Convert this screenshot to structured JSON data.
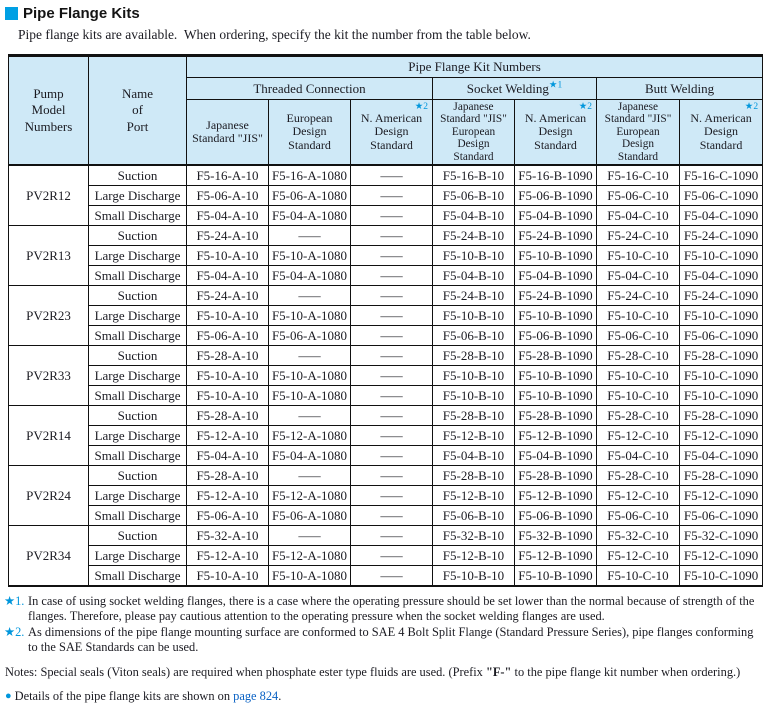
{
  "title": "Pipe Flange Kits",
  "subtitle": "Pipe flange kits are available.  When ordering, specify the kit the number from the table below.",
  "colors": {
    "accent_square": "#00a0e4",
    "header_bg": "#cfe9f7",
    "star_marker": "#0096dc",
    "link": "#0a62c4"
  },
  "table": {
    "pump_header": "Pump\nModel\nNumbers",
    "port_header": "Name\nof\nPort",
    "kit_numbers_header": "Pipe Flange Kit Numbers",
    "groups_header": [
      {
        "label": "Threaded Connection",
        "marker": ""
      },
      {
        "label": "Socket Welding",
        "marker": "★1"
      },
      {
        "label": "Butt Welding",
        "marker": ""
      }
    ],
    "subheaders": [
      {
        "text": "Japanese\nStandard \"JIS\"",
        "marker": ""
      },
      {
        "text": "European\nDesign\nStandard",
        "marker": ""
      },
      {
        "text": "N. American\nDesign\nStandard",
        "marker": "★2"
      },
      {
        "text": "Japanese\nStandard \"JIS\"\nEuropean\nDesign\nStandard",
        "marker": ""
      },
      {
        "text": "N. American\nDesign\nStandard",
        "marker": "★2"
      },
      {
        "text": "Japanese\nStandard \"JIS\"\nEuropean\nDesign\nStandard",
        "marker": ""
      },
      {
        "text": "N. American\nDesign\nStandard",
        "marker": "★2"
      }
    ],
    "groups": [
      {
        "model": "PV2R12",
        "rows": [
          {
            "port": "Suction",
            "cells": [
              "F5-16-A-10",
              "F5-16-A-1080",
              "—",
              "F5-16-B-10",
              "F5-16-B-1090",
              "F5-16-C-10",
              "F5-16-C-1090"
            ]
          },
          {
            "port": "Large Discharge",
            "cells": [
              "F5-06-A-10",
              "F5-06-A-1080",
              "—",
              "F5-06-B-10",
              "F5-06-B-1090",
              "F5-06-C-10",
              "F5-06-C-1090"
            ]
          },
          {
            "port": "Small Discharge",
            "cells": [
              "F5-04-A-10",
              "F5-04-A-1080",
              "—",
              "F5-04-B-10",
              "F5-04-B-1090",
              "F5-04-C-10",
              "F5-04-C-1090"
            ]
          }
        ]
      },
      {
        "model": "PV2R13",
        "rows": [
          {
            "port": "Suction",
            "cells": [
              "F5-24-A-10",
              "—",
              "—",
              "F5-24-B-10",
              "F5-24-B-1090",
              "F5-24-C-10",
              "F5-24-C-1090"
            ]
          },
          {
            "port": "Large Discharge",
            "cells": [
              "F5-10-A-10",
              "F5-10-A-1080",
              "—",
              "F5-10-B-10",
              "F5-10-B-1090",
              "F5-10-C-10",
              "F5-10-C-1090"
            ]
          },
          {
            "port": "Small Discharge",
            "cells": [
              "F5-04-A-10",
              "F5-04-A-1080",
              "—",
              "F5-04-B-10",
              "F5-04-B-1090",
              "F5-04-C-10",
              "F5-04-C-1090"
            ]
          }
        ]
      },
      {
        "model": "PV2R23",
        "rows": [
          {
            "port": "Suction",
            "cells": [
              "F5-24-A-10",
              "—",
              "—",
              "F5-24-B-10",
              "F5-24-B-1090",
              "F5-24-C-10",
              "F5-24-C-1090"
            ]
          },
          {
            "port": "Large Discharge",
            "cells": [
              "F5-10-A-10",
              "F5-10-A-1080",
              "—",
              "F5-10-B-10",
              "F5-10-B-1090",
              "F5-10-C-10",
              "F5-10-C-1090"
            ]
          },
          {
            "port": "Small Discharge",
            "cells": [
              "F5-06-A-10",
              "F5-06-A-1080",
              "—",
              "F5-06-B-10",
              "F5-06-B-1090",
              "F5-06-C-10",
              "F5-06-C-1090"
            ]
          }
        ]
      },
      {
        "model": "PV2R33",
        "rows": [
          {
            "port": "Suction",
            "cells": [
              "F5-28-A-10",
              "—",
              "—",
              "F5-28-B-10",
              "F5-28-B-1090",
              "F5-28-C-10",
              "F5-28-C-1090"
            ]
          },
          {
            "port": "Large Discharge",
            "cells": [
              "F5-10-A-10",
              "F5-10-A-1080",
              "—",
              "F5-10-B-10",
              "F5-10-B-1090",
              "F5-10-C-10",
              "F5-10-C-1090"
            ]
          },
          {
            "port": "Small Discharge",
            "cells": [
              "F5-10-A-10",
              "F5-10-A-1080",
              "—",
              "F5-10-B-10",
              "F5-10-B-1090",
              "F5-10-C-10",
              "F5-10-C-1090"
            ]
          }
        ]
      },
      {
        "model": "PV2R14",
        "rows": [
          {
            "port": "Suction",
            "cells": [
              "F5-28-A-10",
              "—",
              "—",
              "F5-28-B-10",
              "F5-28-B-1090",
              "F5-28-C-10",
              "F5-28-C-1090"
            ]
          },
          {
            "port": "Large Discharge",
            "cells": [
              "F5-12-A-10",
              "F5-12-A-1080",
              "—",
              "F5-12-B-10",
              "F5-12-B-1090",
              "F5-12-C-10",
              "F5-12-C-1090"
            ]
          },
          {
            "port": "Small Discharge",
            "cells": [
              "F5-04-A-10",
              "F5-04-A-1080",
              "—",
              "F5-04-B-10",
              "F5-04-B-1090",
              "F5-04-C-10",
              "F5-04-C-1090"
            ]
          }
        ]
      },
      {
        "model": "PV2R24",
        "rows": [
          {
            "port": "Suction",
            "cells": [
              "F5-28-A-10",
              "—",
              "—",
              "F5-28-B-10",
              "F5-28-B-1090",
              "F5-28-C-10",
              "F5-28-C-1090"
            ]
          },
          {
            "port": "Large Discharge",
            "cells": [
              "F5-12-A-10",
              "F5-12-A-1080",
              "—",
              "F5-12-B-10",
              "F5-12-B-1090",
              "F5-12-C-10",
              "F5-12-C-1090"
            ]
          },
          {
            "port": "Small Discharge",
            "cells": [
              "F5-06-A-10",
              "F5-06-A-1080",
              "—",
              "F5-06-B-10",
              "F5-06-B-1090",
              "F5-06-C-10",
              "F5-06-C-1090"
            ]
          }
        ]
      },
      {
        "model": "PV2R34",
        "rows": [
          {
            "port": "Suction",
            "cells": [
              "F5-32-A-10",
              "—",
              "—",
              "F5-32-B-10",
              "F5-32-B-1090",
              "F5-32-C-10",
              "F5-32-C-1090"
            ]
          },
          {
            "port": "Large Discharge",
            "cells": [
              "F5-12-A-10",
              "F5-12-A-1080",
              "—",
              "F5-12-B-10",
              "F5-12-B-1090",
              "F5-12-C-10",
              "F5-12-C-1090"
            ]
          },
          {
            "port": "Small Discharge",
            "cells": [
              "F5-10-A-10",
              "F5-10-A-1080",
              "—",
              "F5-10-B-10",
              "F5-10-B-1090",
              "F5-10-C-10",
              "F5-10-C-1090"
            ]
          }
        ]
      }
    ]
  },
  "footnotes": [
    {
      "marker": "★1.",
      "text": "In case of using socket welding flanges, there is a case where the operating pressure should be set lower than the normal because of strength of the flanges. Therefore, please pay cautious attention to the operating pressure when the socket welding flanges are used."
    },
    {
      "marker": "★2.",
      "text": "As dimensions of the pipe flange mounting surface are conformed to SAE 4 Bolt Split Flange (Standard Pressure Series), pipe flanges conforming to the SAE Standards can be used."
    }
  ],
  "notes": {
    "pre": "Notes: Special seals (Viton seals) are required when phosphate ester type fluids are used. (Prefix ",
    "bold": "\"F-\"",
    "post": " to the pipe flange kit number when ordering.)"
  },
  "details": {
    "bullet": "●",
    "pre": "Details of the pipe flange kits are shown on ",
    "link": "page 824",
    "post": "."
  }
}
